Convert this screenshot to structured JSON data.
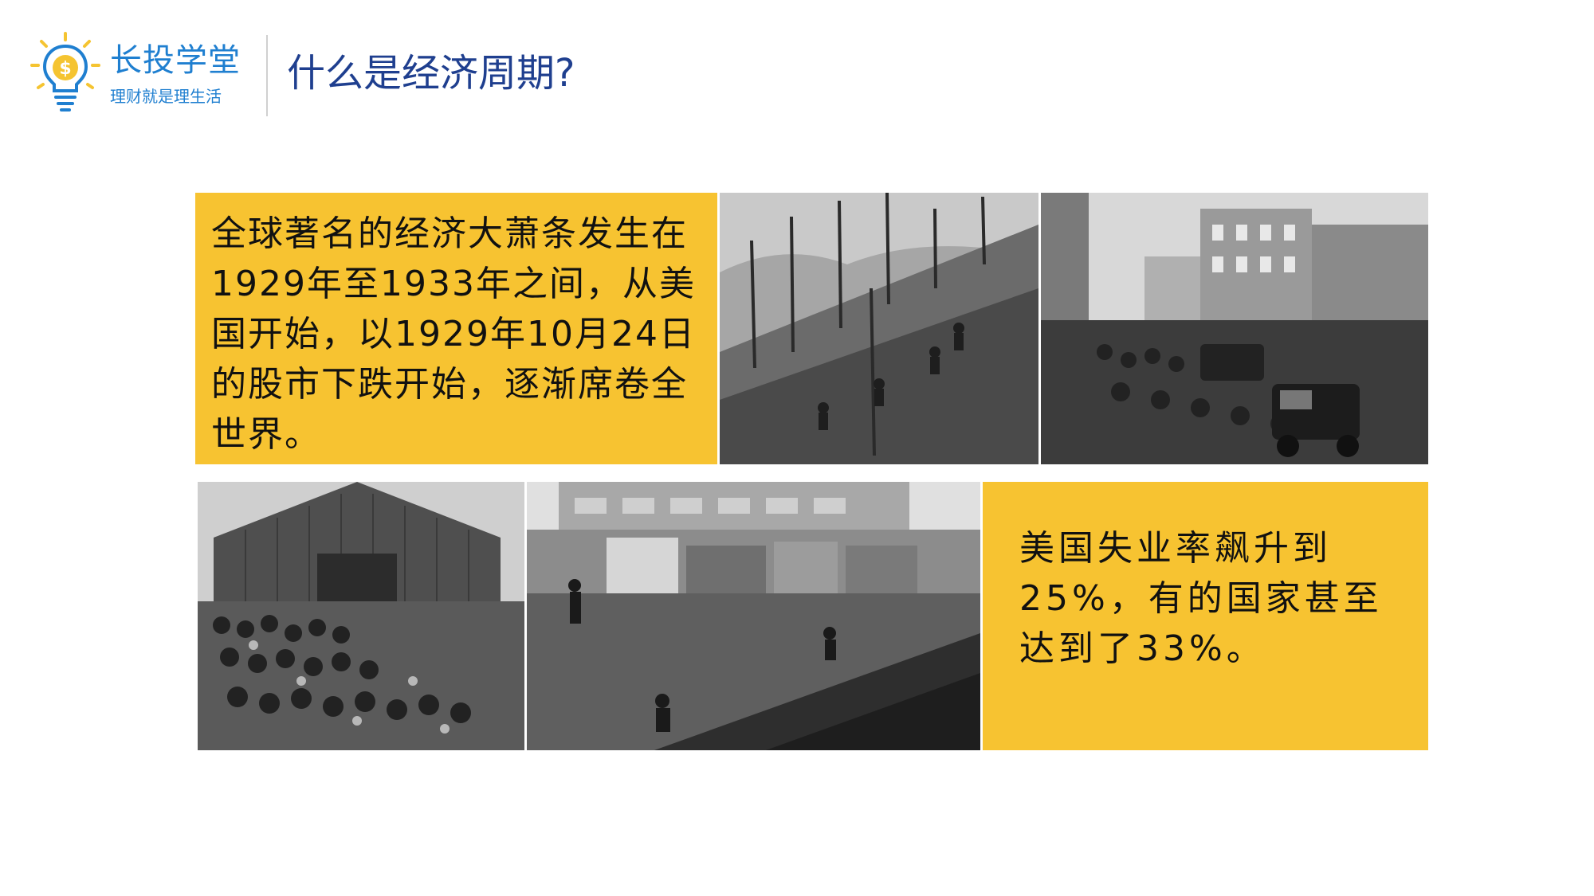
{
  "brand": {
    "name": "长投学堂",
    "slogan": "理财就是理生活",
    "bulb_icon": "lightbulb-dollar-icon",
    "color": "#1f7fd0"
  },
  "title": "什么是经济周期?",
  "title_color": "#1f3f8f",
  "accent_color": "#f7c331",
  "box1": {
    "text": "全球著名的经济大萧条发生在1929年至1933年之间，从美国开始，以1929年10月24日的股市下跌开始，逐渐席卷全世界。"
  },
  "box2": {
    "text": "美国失业率飙升到25%，有的国家甚至达到了33%。"
  },
  "photos": [
    {
      "id": "photo-hillside-workers"
    },
    {
      "id": "photo-street-crowd"
    },
    {
      "id": "photo-crowd-at-barn"
    },
    {
      "id": "photo-shantytown-waterfront"
    }
  ]
}
